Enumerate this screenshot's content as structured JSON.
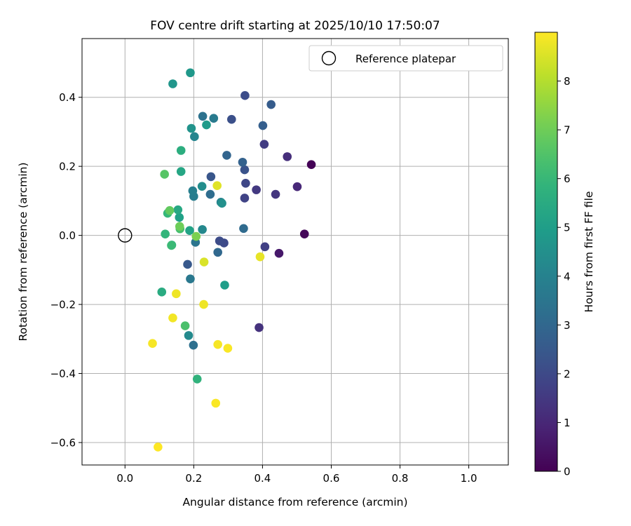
{
  "chart_data": {
    "type": "scatter",
    "title": "FOV centre drift starting at 2025/10/10 17:50:07",
    "xlabel": "Angular distance from reference (arcmin)",
    "ylabel": "Rotation from reference (arcmin)",
    "xlim": [
      -0.125,
      1.115
    ],
    "ylim": [
      -0.665,
      0.57
    ],
    "xticks": [
      0.0,
      0.2,
      0.4,
      0.6,
      0.8,
      1.0
    ],
    "xtick_labels": [
      "0.0",
      "0.2",
      "0.4",
      "0.6",
      "0.8",
      "1.0"
    ],
    "yticks": [
      -0.6,
      -0.4,
      -0.2,
      0.0,
      0.2,
      0.4
    ],
    "ytick_labels": [
      "−0.6",
      "−0.4",
      "−0.2",
      "0.0",
      "0.2",
      "0.4"
    ],
    "grid": true,
    "legend": {
      "position": "top-right",
      "label": "Reference platepar"
    },
    "reference": {
      "x": 0.0,
      "y": 0.0
    },
    "colorbar": {
      "label": "Hours from first FF file",
      "min": 0,
      "max": 9,
      "ticks": [
        0,
        1,
        2,
        3,
        4,
        5,
        6,
        7,
        8
      ],
      "tick_labels": [
        "0",
        "1",
        "2",
        "3",
        "4",
        "5",
        "6",
        "7",
        "8"
      ],
      "colormap": "viridis"
    },
    "points": [
      {
        "x": 0.542,
        "y": 0.205,
        "hours": 0.05
      },
      {
        "x": 0.522,
        "y": 0.004,
        "hours": 0.15
      },
      {
        "x": 0.448,
        "y": -0.052,
        "hours": 0.6
      },
      {
        "x": 0.501,
        "y": 0.141,
        "hours": 1.0
      },
      {
        "x": 0.472,
        "y": 0.228,
        "hours": 1.2
      },
      {
        "x": 0.39,
        "y": -0.267,
        "hours": 1.3
      },
      {
        "x": 0.438,
        "y": 0.119,
        "hours": 1.4
      },
      {
        "x": 0.382,
        "y": 0.132,
        "hours": 1.5
      },
      {
        "x": 0.405,
        "y": 0.264,
        "hours": 1.6
      },
      {
        "x": 0.407,
        "y": -0.033,
        "hours": 1.7
      },
      {
        "x": 0.348,
        "y": 0.108,
        "hours": 1.8
      },
      {
        "x": 0.351,
        "y": 0.151,
        "hours": 1.9
      },
      {
        "x": 0.288,
        "y": -0.022,
        "hours": 2.0
      },
      {
        "x": 0.275,
        "y": -0.016,
        "hours": 2.05
      },
      {
        "x": 0.349,
        "y": 0.405,
        "hours": 2.1
      },
      {
        "x": 0.31,
        "y": 0.336,
        "hours": 2.2
      },
      {
        "x": 0.348,
        "y": 0.19,
        "hours": 2.3
      },
      {
        "x": 0.25,
        "y": 0.17,
        "hours": 2.4
      },
      {
        "x": 0.182,
        "y": -0.084,
        "hours": 2.5
      },
      {
        "x": 0.425,
        "y": 0.379,
        "hours": 2.6
      },
      {
        "x": 0.401,
        "y": 0.318,
        "hours": 2.7
      },
      {
        "x": 0.342,
        "y": 0.212,
        "hours": 2.8
      },
      {
        "x": 0.296,
        "y": 0.232,
        "hours": 2.9
      },
      {
        "x": 0.27,
        "y": -0.049,
        "hours": 3.0
      },
      {
        "x": 0.345,
        "y": 0.02,
        "hours": 3.1
      },
      {
        "x": 0.248,
        "y": 0.119,
        "hours": 3.2
      },
      {
        "x": 0.199,
        "y": -0.318,
        "hours": 3.3
      },
      {
        "x": 0.226,
        "y": 0.345,
        "hours": 3.4
      },
      {
        "x": 0.205,
        "y": -0.02,
        "hours": 3.5
      },
      {
        "x": 0.19,
        "y": -0.126,
        "hours": 3.6
      },
      {
        "x": 0.258,
        "y": 0.339,
        "hours": 3.7
      },
      {
        "x": 0.2,
        "y": 0.113,
        "hours": 3.8
      },
      {
        "x": 0.197,
        "y": 0.129,
        "hours": 3.9
      },
      {
        "x": 0.279,
        "y": 0.096,
        "hours": 4.0
      },
      {
        "x": 0.202,
        "y": 0.286,
        "hours": 4.1
      },
      {
        "x": 0.225,
        "y": 0.017,
        "hours": 4.2
      },
      {
        "x": 0.185,
        "y": -0.29,
        "hours": 4.3
      },
      {
        "x": 0.224,
        "y": 0.142,
        "hours": 4.4
      },
      {
        "x": 0.282,
        "y": 0.093,
        "hours": 4.5
      },
      {
        "x": 0.193,
        "y": 0.31,
        "hours": 4.6
      },
      {
        "x": 0.139,
        "y": 0.439,
        "hours": 4.7
      },
      {
        "x": 0.19,
        "y": 0.471,
        "hours": 4.8
      },
      {
        "x": 0.237,
        "y": 0.32,
        "hours": 4.9
      },
      {
        "x": 0.29,
        "y": -0.144,
        "hours": 5.0
      },
      {
        "x": 0.158,
        "y": 0.052,
        "hours": 5.1
      },
      {
        "x": 0.188,
        "y": 0.014,
        "hours": 5.2
      },
      {
        "x": 0.163,
        "y": 0.185,
        "hours": 5.3
      },
      {
        "x": 0.154,
        "y": 0.074,
        "hours": 5.4
      },
      {
        "x": 0.107,
        "y": -0.164,
        "hours": 5.5
      },
      {
        "x": 0.163,
        "y": 0.246,
        "hours": 5.6
      },
      {
        "x": 0.136,
        "y": -0.028,
        "hours": 5.7
      },
      {
        "x": 0.21,
        "y": -0.416,
        "hours": 5.8
      },
      {
        "x": 0.117,
        "y": 0.004,
        "hours": 5.9
      },
      {
        "x": 0.124,
        "y": 0.064,
        "hours": 6.0
      },
      {
        "x": 0.135,
        "y": -0.029,
        "hours": 6.1
      },
      {
        "x": 0.16,
        "y": 0.019,
        "hours": 6.3
      },
      {
        "x": 0.175,
        "y": -0.262,
        "hours": 6.4
      },
      {
        "x": 0.115,
        "y": 0.177,
        "hours": 6.6
      },
      {
        "x": 0.13,
        "y": 0.072,
        "hours": 6.8
      },
      {
        "x": 0.159,
        "y": 0.026,
        "hours": 7.0
      },
      {
        "x": 0.207,
        "y": -0.003,
        "hours": 7.2
      },
      {
        "x": 0.23,
        "y": -0.077,
        "hours": 8.5
      },
      {
        "x": 0.268,
        "y": 0.144,
        "hours": 8.6
      },
      {
        "x": 0.393,
        "y": -0.062,
        "hours": 8.7
      },
      {
        "x": 0.149,
        "y": -0.169,
        "hours": 8.8
      },
      {
        "x": 0.229,
        "y": -0.2,
        "hours": 8.8
      },
      {
        "x": 0.139,
        "y": -0.239,
        "hours": 8.85
      },
      {
        "x": 0.08,
        "y": -0.313,
        "hours": 8.9
      },
      {
        "x": 0.27,
        "y": -0.316,
        "hours": 8.9
      },
      {
        "x": 0.299,
        "y": -0.327,
        "hours": 8.95
      },
      {
        "x": 0.264,
        "y": -0.486,
        "hours": 8.95
      },
      {
        "x": 0.096,
        "y": -0.613,
        "hours": 9.0
      }
    ]
  }
}
